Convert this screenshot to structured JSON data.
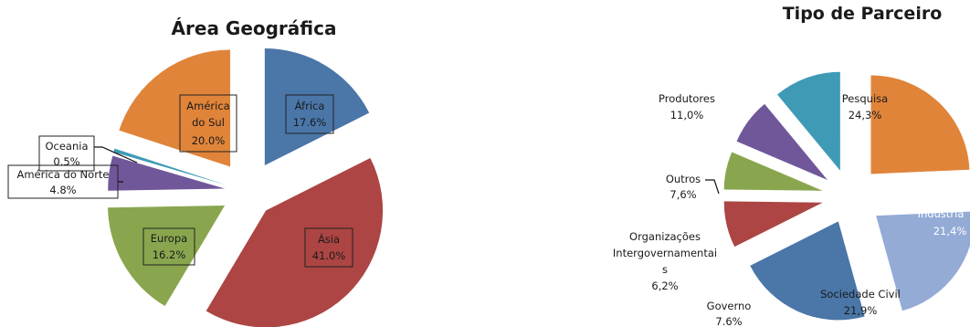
{
  "chart_data": [
    {
      "type": "pie",
      "title": "Área Geográfica",
      "slices": [
        {
          "label": "África",
          "value": 17.6,
          "display": "17.6%",
          "color": "#4a76a8"
        },
        {
          "label": "Ásia",
          "value": 41.0,
          "display": "41.0%",
          "color": "#ac4543"
        },
        {
          "label": "Europa",
          "value": 16.2,
          "display": "16.2%",
          "color": "#89a64e"
        },
        {
          "label": "América do Norte",
          "value": 4.8,
          "display": "4.8%",
          "color": "#70579a"
        },
        {
          "label": "Oceania",
          "value": 0.5,
          "display": "0.5%",
          "color": "#3f9bb5"
        },
        {
          "label": "América do Sul",
          "value": 20.0,
          "display": "20.0%",
          "color": "#e0843a"
        }
      ]
    },
    {
      "type": "pie",
      "title": "Tipo de Parceiro",
      "slices": [
        {
          "label": "Pesquisa",
          "value": 24.3,
          "display": "24,3%",
          "color": "#e0843a"
        },
        {
          "label": "Comércio e Industria",
          "value": 21.4,
          "display": "21,4%",
          "color": "#94abd6"
        },
        {
          "label": "Sociedade Civil",
          "value": 21.9,
          "display": "21,9%",
          "color": "#4a76a8"
        },
        {
          "label": "Governo",
          "value": 7.6,
          "display": "7.6%",
          "color": "#ac4543"
        },
        {
          "label": "Organizações Intergovernamentais",
          "value": 6.2,
          "display": "6,2%",
          "color": "#89a64e"
        },
        {
          "label": "Outros",
          "value": 7.6,
          "display": "7,6%",
          "color": "#70579a"
        },
        {
          "label": "Produtores",
          "value": 11.0,
          "display": "11,0%",
          "color": "#3f9bb5"
        }
      ]
    }
  ]
}
